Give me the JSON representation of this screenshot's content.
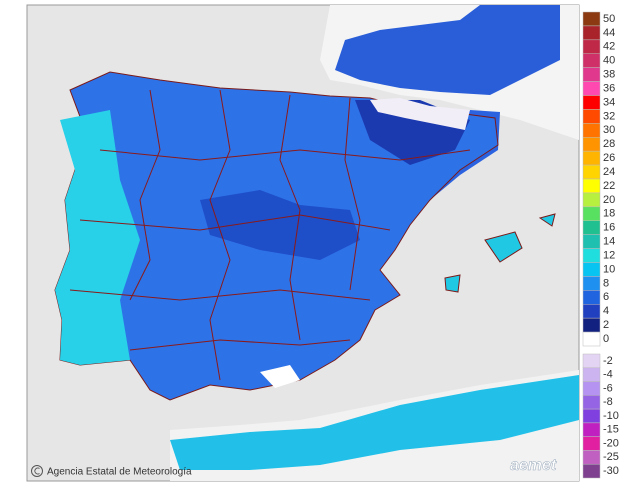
{
  "credit": "Agencia Estatal de Meteorología",
  "logo": "aemet",
  "legend": [
    {
      "label": "50",
      "color": "#8b3a12"
    },
    {
      "label": "44",
      "color": "#a8232a"
    },
    {
      "label": "42",
      "color": "#c02848"
    },
    {
      "label": "40",
      "color": "#d03068"
    },
    {
      "label": "38",
      "color": "#e0388c"
    },
    {
      "label": "36",
      "color": "#ff48b0"
    },
    {
      "label": "34",
      "color": "#ff0000"
    },
    {
      "label": "32",
      "color": "#ff4a00"
    },
    {
      "label": "30",
      "color": "#ff7400"
    },
    {
      "label": "28",
      "color": "#ff9400"
    },
    {
      "label": "26",
      "color": "#ffb400"
    },
    {
      "label": "24",
      "color": "#ffd400"
    },
    {
      "label": "22",
      "color": "#ffff00"
    },
    {
      "label": "20",
      "color": "#b8f040"
    },
    {
      "label": "18",
      "color": "#58e060"
    },
    {
      "label": "16",
      "color": "#20c090"
    },
    {
      "label": "14",
      "color": "#20c0b0"
    },
    {
      "label": "12",
      "color": "#20dede"
    },
    {
      "label": "10",
      "color": "#08c4f0"
    },
    {
      "label": "8",
      "color": "#1e90f0"
    },
    {
      "label": "6",
      "color": "#2064e0"
    },
    {
      "label": "4",
      "color": "#2040c0"
    },
    {
      "label": "2",
      "color": "#122080"
    },
    {
      "label": "0",
      "color": "#ffffff"
    },
    {
      "label": "-2",
      "color": "#e4d4f4"
    },
    {
      "label": "-4",
      "color": "#ccb4f0"
    },
    {
      "label": "-6",
      "color": "#b494f0"
    },
    {
      "label": "-8",
      "color": "#9464e4"
    },
    {
      "label": "-10",
      "color": "#8040e0"
    },
    {
      "label": "-15",
      "color": "#c020c0"
    },
    {
      "label": "-20",
      "color": "#e020a0"
    },
    {
      "label": "-25",
      "color": "#c060c0"
    },
    {
      "label": "-30",
      "color": "#804090"
    }
  ]
}
